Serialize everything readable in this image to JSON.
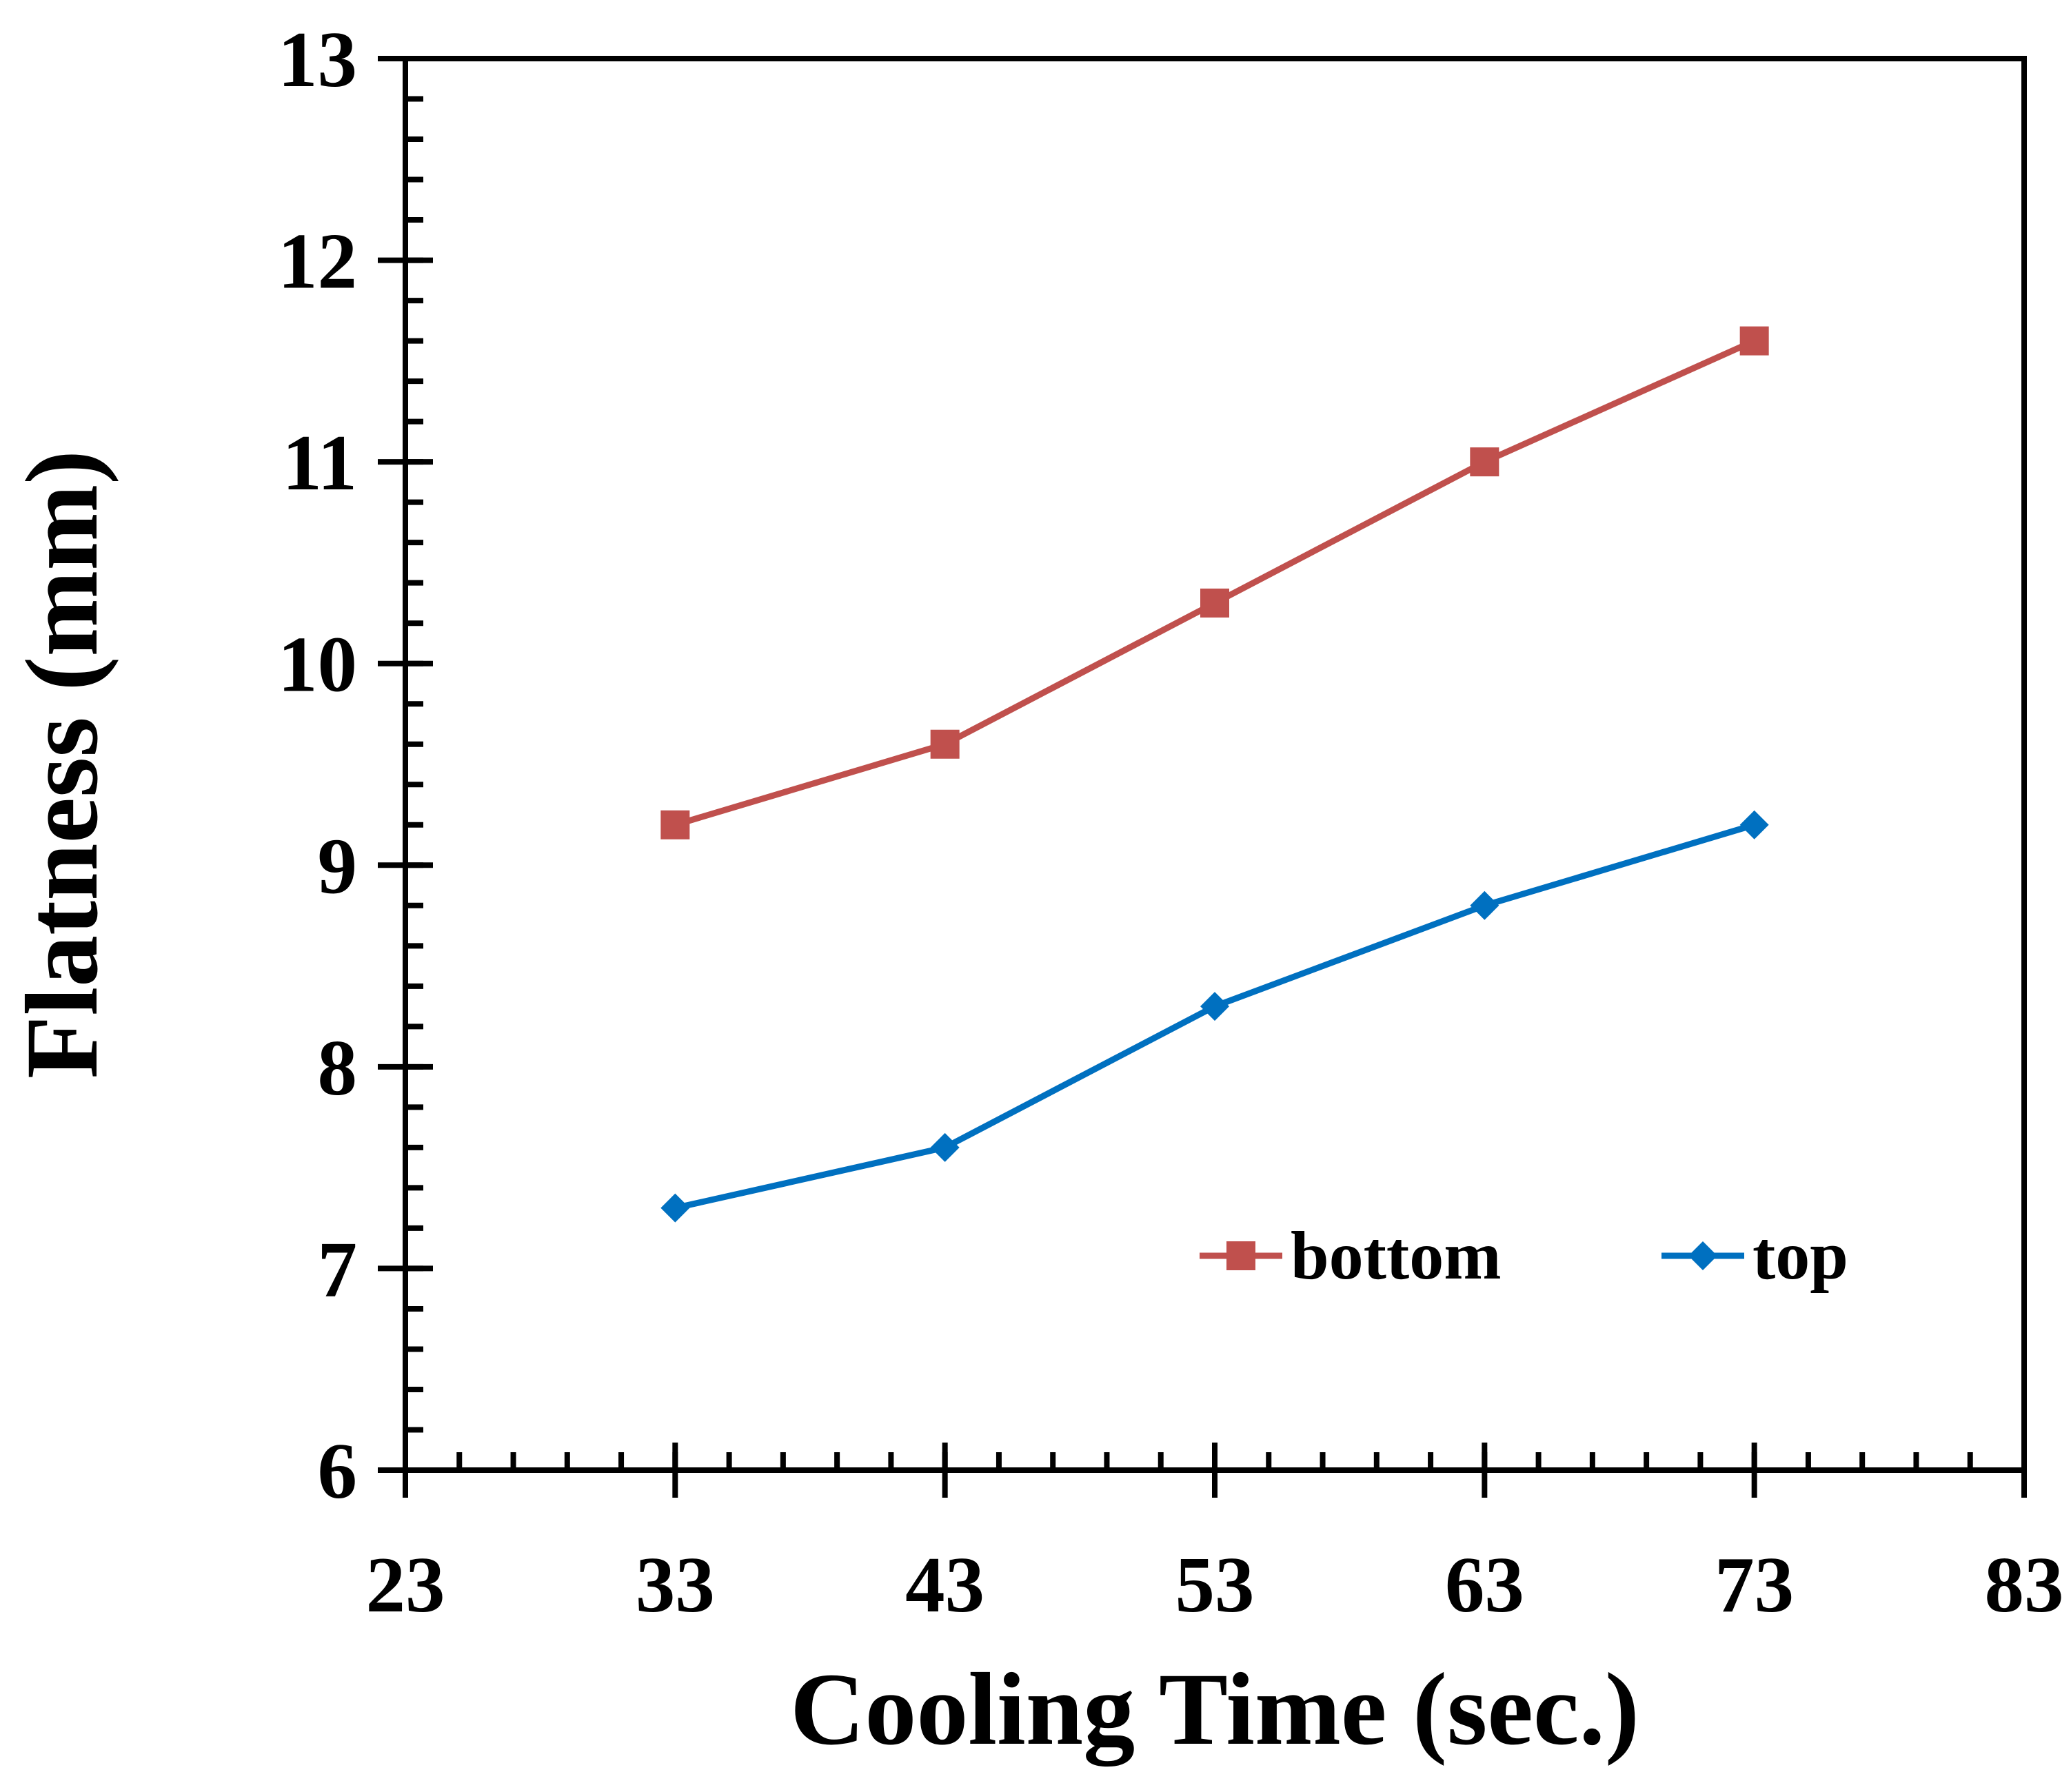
{
  "chart_data": {
    "type": "line",
    "title": "",
    "xlabel": "Cooling Time (sec.)",
    "ylabel": "Flatness (mm)",
    "xlim": [
      23,
      83
    ],
    "ylim": [
      6,
      13
    ],
    "x_ticks": [
      "23",
      "33",
      "43",
      "53",
      "63",
      "73",
      "83"
    ],
    "y_ticks": [
      "6",
      "7",
      "8",
      "9",
      "10",
      "11",
      "12",
      "13"
    ],
    "x_minor_step": 2,
    "y_minor_step": 0.2,
    "grid": false,
    "legend_position": "bottom-right",
    "x": [
      33,
      43,
      53,
      63,
      73
    ],
    "series": [
      {
        "name": "bottom",
        "color": "#c0504d",
        "marker": "square",
        "values": [
          9.2,
          9.6,
          10.3,
          11.0,
          11.6
        ]
      },
      {
        "name": "top",
        "color": "#0070c0",
        "marker": "diamond",
        "values": [
          7.3,
          7.6,
          8.3,
          8.8,
          9.2
        ]
      }
    ]
  }
}
